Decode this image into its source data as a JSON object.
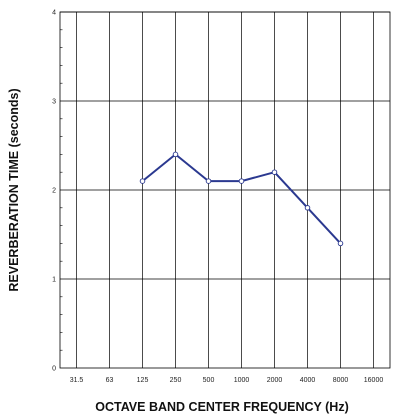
{
  "chart_data": {
    "type": "line",
    "xlabel": "OCTAVE BAND CENTER FREQUENCY (Hz)",
    "ylabel": "REVERBERATION TIME (seconds)",
    "x_tick_labels": [
      "31.5",
      "63",
      "125",
      "250",
      "500",
      "1000",
      "2000",
      "4000",
      "8000",
      "16000"
    ],
    "y_tick_labels": [
      "0",
      "1",
      "2",
      "3",
      "4"
    ],
    "ylim": [
      0,
      4
    ],
    "grid": true,
    "colors": {
      "line": "#2b3990",
      "marker_fill": "#ffffff",
      "marker_stroke": "#2b3990"
    },
    "series": [
      {
        "x": [
          "125",
          "250",
          "500",
          "1000",
          "2000",
          "4000",
          "8000"
        ],
        "values": [
          2.1,
          2.4,
          2.1,
          2.1,
          2.2,
          1.8,
          1.4
        ]
      }
    ]
  }
}
